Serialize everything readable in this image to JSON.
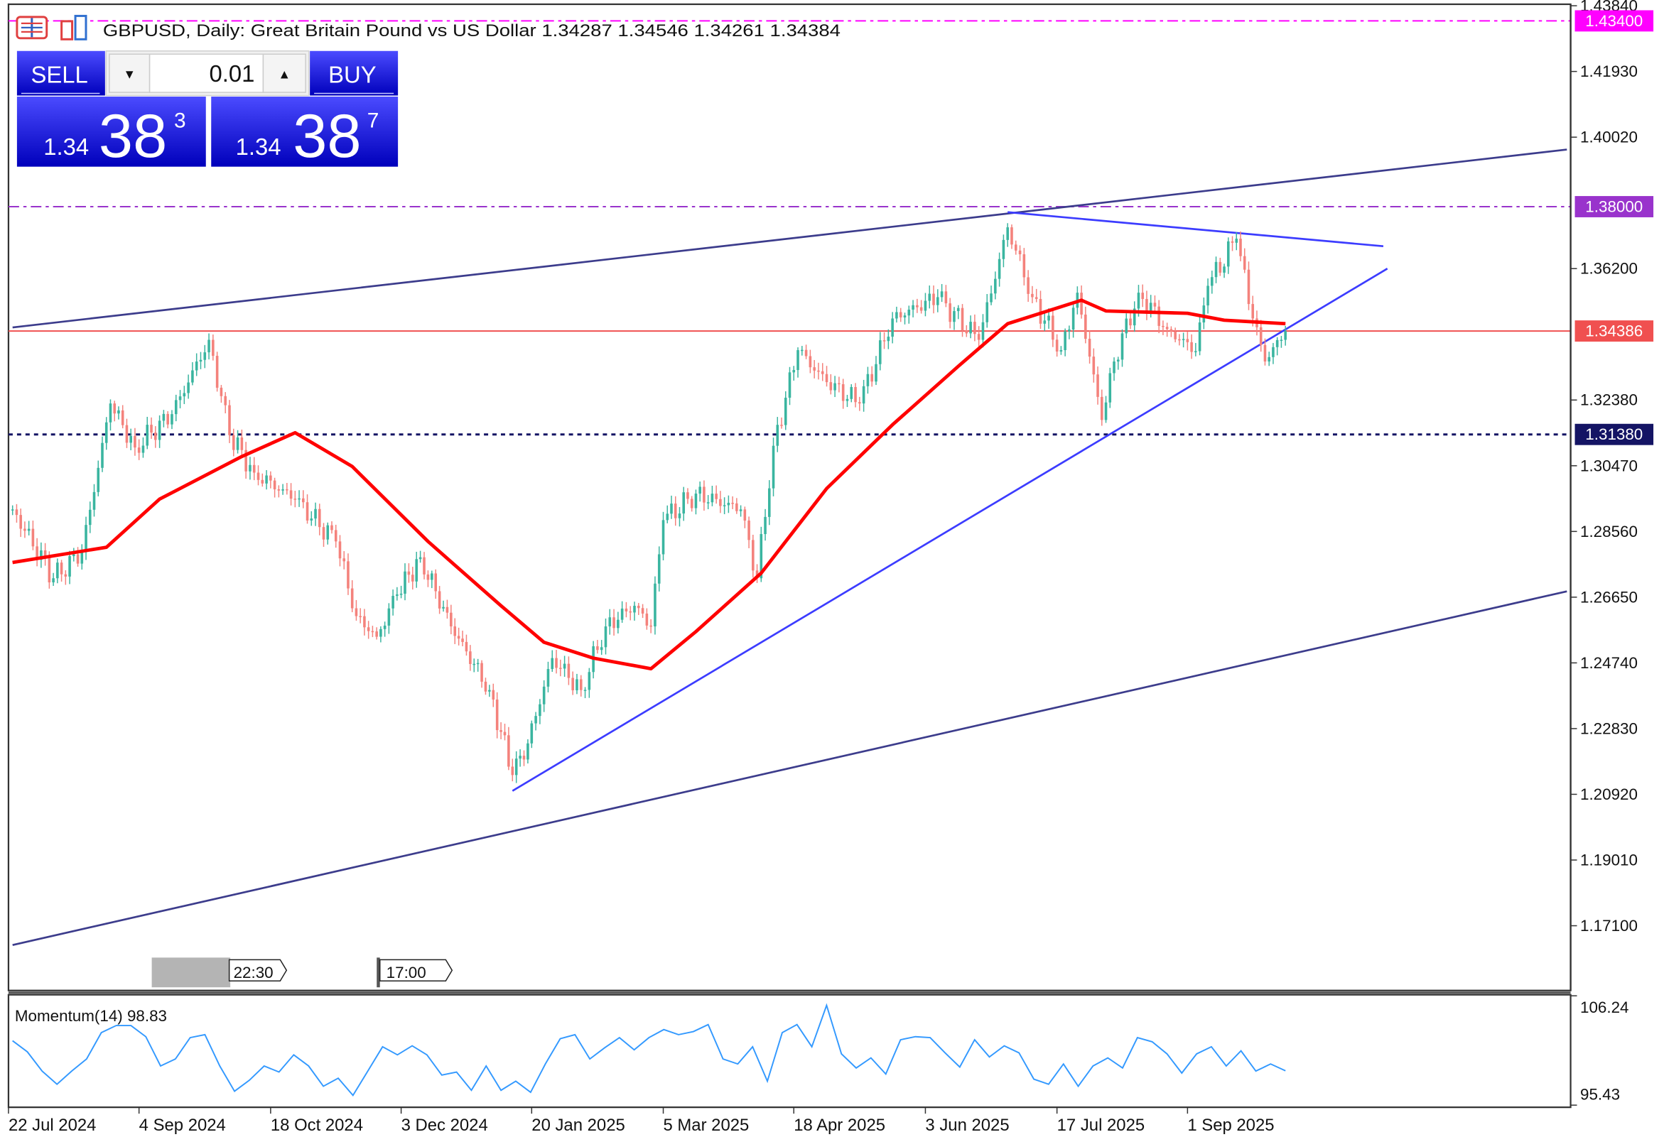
{
  "header": {
    "title": "GBPUSD, Daily:  Great Britain Pound vs US Dollar  1.34287 1.34546 1.34261 1.34384",
    "icons": [
      "one-click-trading-icon",
      "chart-bars-icon"
    ]
  },
  "trade_panel": {
    "sell_label": "SELL",
    "buy_label": "BUY",
    "lot_value": "0.01",
    "bid": {
      "prefix": "1.34",
      "big": "38",
      "sup": "3"
    },
    "ask": {
      "prefix": "1.34",
      "big": "38",
      "sup": "7"
    },
    "colors": {
      "top": "#4b4bff",
      "bottom": "#0000bb"
    }
  },
  "event_markers": [
    {
      "label": "22:30"
    },
    {
      "label": "17:00"
    }
  ],
  "chart_data": {
    "type": "candlestick",
    "symbol": "GBPUSD",
    "timeframe": "Daily",
    "price_axis_ticks": [
      "1.43840",
      "1.41930",
      "1.40020",
      "1.36200",
      "1.32380",
      "1.30470",
      "1.28560",
      "1.26650",
      "1.24740",
      "1.22830",
      "1.20920",
      "1.19010",
      "1.17100"
    ],
    "date_axis_labels": [
      "22 Jul 2024",
      "4 Sep 2024",
      "18 Oct 2024",
      "3 Dec 2024",
      "20 Jan 2025",
      "5 Mar 2025",
      "18 Apr 2025",
      "3 Jun 2025",
      "17 Jul 2025",
      "1 Sep 2025"
    ],
    "colors": {
      "bull": "#3ab5a0",
      "bear": "#f4827c",
      "ma": "#ff0000",
      "momentum": "#3399ff"
    },
    "levels": [
      {
        "price": 1.434,
        "label": "1.43400",
        "color": "#ff00ff",
        "style": "dash-dot"
      },
      {
        "price": 1.38,
        "label": "1.38000",
        "color": "#9933cc",
        "style": "dash-dot"
      },
      {
        "price": 1.34386,
        "label": "1.34386",
        "color": "#f05050",
        "style": "solid"
      },
      {
        "price": 1.3138,
        "label": "1.31380",
        "color": "#141464",
        "style": "dotted"
      }
    ],
    "trendlines": [
      {
        "name": "channel-upper",
        "color": "#3c3c8c",
        "from": {
          "date": "2024-07-23",
          "price": 1.3449
        },
        "to": {
          "date": "2026-01-08",
          "price": 1.3966
        }
      },
      {
        "name": "channel-lower",
        "color": "#3c3c8c",
        "from": {
          "date": "2024-07-23",
          "price": 1.1654
        },
        "to": {
          "date": "2026-01-08",
          "price": 1.2682
        }
      },
      {
        "name": "triangle-support",
        "color": "#3c3cff",
        "from": {
          "date": "2025-01-13",
          "price": 1.2102
        },
        "to": {
          "date": "2025-11-07",
          "price": 1.362
        }
      },
      {
        "name": "triangle-resistance",
        "color": "#3c3cff",
        "from": {
          "date": "2025-07-01",
          "price": 1.3784
        },
        "to": {
          "date": "2025-11-06",
          "price": 1.3685
        }
      }
    ],
    "price_path": [
      [
        "2024-07-23",
        1.292
      ],
      [
        "2024-08-06",
        1.272
      ],
      [
        "2024-08-15",
        1.2796
      ],
      [
        "2024-08-26",
        1.3228
      ],
      [
        "2024-09-03",
        1.31
      ],
      [
        "2024-09-16",
        1.3197
      ],
      [
        "2024-09-27",
        1.3413
      ],
      [
        "2024-10-04",
        1.3136
      ],
      [
        "2024-10-14",
        1.3027
      ],
      [
        "2024-10-28",
        1.295
      ],
      [
        "2024-11-11",
        1.2827
      ],
      [
        "2024-11-18",
        1.261
      ],
      [
        "2024-11-25",
        1.255
      ],
      [
        "2024-12-02",
        1.2673
      ],
      [
        "2024-12-10",
        1.2781
      ],
      [
        "2024-12-20",
        1.258
      ],
      [
        "2025-01-03",
        1.2395
      ],
      [
        "2025-01-13",
        1.2148
      ],
      [
        "2025-01-17",
        1.224
      ],
      [
        "2025-01-27",
        1.2488
      ],
      [
        "2025-02-05",
        1.2395
      ],
      [
        "2025-02-13",
        1.258
      ],
      [
        "2025-02-24",
        1.264
      ],
      [
        "2025-02-28",
        1.258
      ],
      [
        "2025-03-05",
        1.2889
      ],
      [
        "2025-03-17",
        1.2966
      ],
      [
        "2025-04-01",
        1.292
      ],
      [
        "2025-04-07",
        1.272
      ],
      [
        "2025-04-11",
        1.3105
      ],
      [
        "2025-04-21",
        1.3383
      ],
      [
        "2025-04-30",
        1.329
      ],
      [
        "2025-05-12",
        1.3228
      ],
      [
        "2025-05-22",
        1.3475
      ],
      [
        "2025-06-06",
        1.3537
      ],
      [
        "2025-06-20",
        1.3413
      ],
      [
        "2025-07-01",
        1.374
      ],
      [
        "2025-07-09",
        1.3537
      ],
      [
        "2025-07-18",
        1.3383
      ],
      [
        "2025-07-24",
        1.355
      ],
      [
        "2025-08-01",
        1.318
      ],
      [
        "2025-08-06",
        1.335
      ],
      [
        "2025-08-14",
        1.355
      ],
      [
        "2025-08-25",
        1.3444
      ],
      [
        "2025-09-03",
        1.338
      ],
      [
        "2025-09-08",
        1.357
      ],
      [
        "2025-09-17",
        1.3707
      ],
      [
        "2025-09-23",
        1.3475
      ],
      [
        "2025-09-26",
        1.335
      ],
      [
        "2025-10-03",
        1.34384
      ]
    ],
    "moving_average_path": [
      [
        "2024-07-23",
        1.2766
      ],
      [
        "2024-08-23",
        1.281
      ],
      [
        "2024-09-11",
        1.295
      ],
      [
        "2024-10-09",
        1.3074
      ],
      [
        "2024-10-28",
        1.3143
      ],
      [
        "2024-11-15",
        1.3045
      ],
      [
        "2024-12-12",
        1.2827
      ],
      [
        "2025-01-08",
        1.264
      ],
      [
        "2025-01-23",
        1.2534
      ],
      [
        "2025-02-10",
        1.2488
      ],
      [
        "2025-02-28",
        1.2457
      ],
      [
        "2025-03-17",
        1.2565
      ],
      [
        "2025-04-08",
        1.2735
      ],
      [
        "2025-04-30",
        1.2981
      ],
      [
        "2025-05-22",
        1.3166
      ],
      [
        "2025-06-13",
        1.3336
      ],
      [
        "2025-07-01",
        1.346
      ],
      [
        "2025-07-25",
        1.3528
      ],
      [
        "2025-08-04",
        1.3497
      ],
      [
        "2025-09-01",
        1.349
      ],
      [
        "2025-09-12",
        1.347
      ],
      [
        "2025-10-03",
        1.346
      ]
    ],
    "momentum": {
      "label": "Momentum(14) 98.83",
      "axis_ticks": [
        "106.24",
        "95.43"
      ],
      "range": [
        95.43,
        106.24
      ],
      "values": [
        101.8,
        100.7,
        98.8,
        97.5,
        98.8,
        100.0,
        102.6,
        103.3,
        103.3,
        102.2,
        99.3,
        100.0,
        102.1,
        102.4,
        99.3,
        96.8,
        97.9,
        99.3,
        98.7,
        100.4,
        99.3,
        97.3,
        98.1,
        96.4,
        98.8,
        101.2,
        100.4,
        101.3,
        100.4,
        98.4,
        98.7,
        96.9,
        99.3,
        96.9,
        97.8,
        96.7,
        99.5,
        102.0,
        102.4,
        100.0,
        101.1,
        102.1,
        100.9,
        102.1,
        102.9,
        102.4,
        102.7,
        103.4,
        100.0,
        99.5,
        101.2,
        97.8,
        102.6,
        103.4,
        101.2,
        105.3,
        100.5,
        99.1,
        100.1,
        98.5,
        101.9,
        102.2,
        102.1,
        100.6,
        99.2,
        101.9,
        100.2,
        101.3,
        100.6,
        98.0,
        97.5,
        99.5,
        97.3,
        99.3,
        100.1,
        99.1,
        102.1,
        101.7,
        100.5,
        98.6,
        100.5,
        101.2,
        99.3,
        100.8,
        98.8,
        99.5,
        98.83
      ]
    }
  }
}
